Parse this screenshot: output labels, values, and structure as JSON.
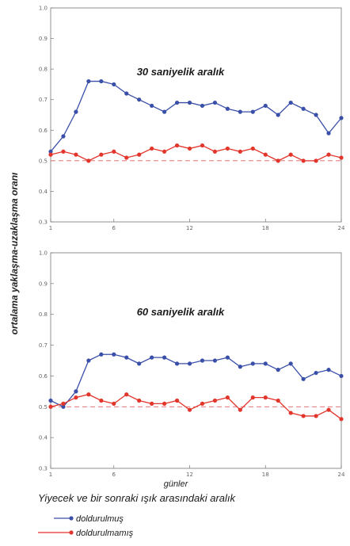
{
  "chart_data": {
    "type": "line",
    "ylabel": "ortalama yaklaşma-uzaklaşma oranı",
    "xlabel": "günler",
    "caption": "Yiyecek ve bir sonraki ışık arasındaki aralık",
    "legend": {
      "placement": "bottom-left",
      "entries": [
        "doldurulmuş",
        "doldurulmamış"
      ]
    },
    "grid": false,
    "colors": {
      "doldurulmus": "#3a4fa8",
      "doldurulmamis": "#e2352b",
      "reference": "#e06060"
    },
    "reference_line": 0.5,
    "panels": [
      {
        "title": "30 saniyelik aralık",
        "x": [
          1,
          2,
          3,
          4,
          5,
          6,
          7,
          8,
          9,
          10,
          11,
          12,
          13,
          14,
          15,
          16,
          17,
          18,
          19,
          20,
          21,
          22,
          23,
          24
        ],
        "xlim": [
          1,
          24
        ],
        "xticks": [
          "1",
          "6",
          "12",
          "18",
          "24"
        ],
        "xtick_values": [
          1,
          6,
          12,
          18,
          24
        ],
        "ylim": [
          0.3,
          1.0
        ],
        "yticks": [
          "1.0",
          "0.9",
          "0.8",
          "0.7",
          "0.6",
          "0.5",
          "0.4",
          "0.3"
        ],
        "ytick_values": [
          1.0,
          0.9,
          0.8,
          0.7,
          0.6,
          0.5,
          0.4,
          0.3
        ],
        "series": [
          {
            "name": "doldurulmuş",
            "values": [
              0.53,
              0.58,
              0.66,
              0.76,
              0.76,
              0.75,
              0.72,
              0.7,
              0.68,
              0.66,
              0.69,
              0.69,
              0.68,
              0.69,
              0.67,
              0.66,
              0.66,
              0.68,
              0.65,
              0.69,
              0.67,
              0.65,
              0.59,
              0.64
            ]
          },
          {
            "name": "doldurulmamış",
            "values": [
              0.52,
              0.53,
              0.52,
              0.5,
              0.52,
              0.53,
              0.51,
              0.52,
              0.54,
              0.53,
              0.55,
              0.54,
              0.55,
              0.53,
              0.54,
              0.53,
              0.54,
              0.52,
              0.5,
              0.52,
              0.5,
              0.5,
              0.52,
              0.51
            ]
          }
        ]
      },
      {
        "title": "60 saniyelik aralık",
        "x": [
          1,
          2,
          3,
          4,
          5,
          6,
          7,
          8,
          9,
          10,
          11,
          12,
          13,
          14,
          15,
          16,
          17,
          18,
          19,
          20,
          21,
          22,
          23,
          24
        ],
        "xlim": [
          1,
          24
        ],
        "xticks": [
          "1",
          "6",
          "12",
          "18",
          "24"
        ],
        "xtick_values": [
          1,
          6,
          12,
          18,
          24
        ],
        "ylim": [
          0.3,
          1.0
        ],
        "yticks": [
          "1.0",
          "0.9",
          "0.8",
          "0.7",
          "0.6",
          "0.5",
          "0.4",
          "0.3"
        ],
        "ytick_values": [
          1.0,
          0.9,
          0.8,
          0.7,
          0.6,
          0.5,
          0.4,
          0.3
        ],
        "series": [
          {
            "name": "doldurulmuş",
            "values": [
              0.52,
              0.5,
              0.55,
              0.65,
              0.67,
              0.67,
              0.66,
              0.64,
              0.66,
              0.66,
              0.64,
              0.64,
              0.65,
              0.65,
              0.66,
              0.63,
              0.64,
              0.64,
              0.62,
              0.64,
              0.59,
              0.61,
              0.62,
              0.6
            ]
          },
          {
            "name": "doldurulmamış",
            "values": [
              0.5,
              0.51,
              0.53,
              0.54,
              0.52,
              0.51,
              0.54,
              0.52,
              0.51,
              0.51,
              0.52,
              0.49,
              0.51,
              0.52,
              0.53,
              0.49,
              0.53,
              0.53,
              0.52,
              0.48,
              0.47,
              0.47,
              0.49,
              0.46
            ]
          }
        ]
      }
    ]
  }
}
